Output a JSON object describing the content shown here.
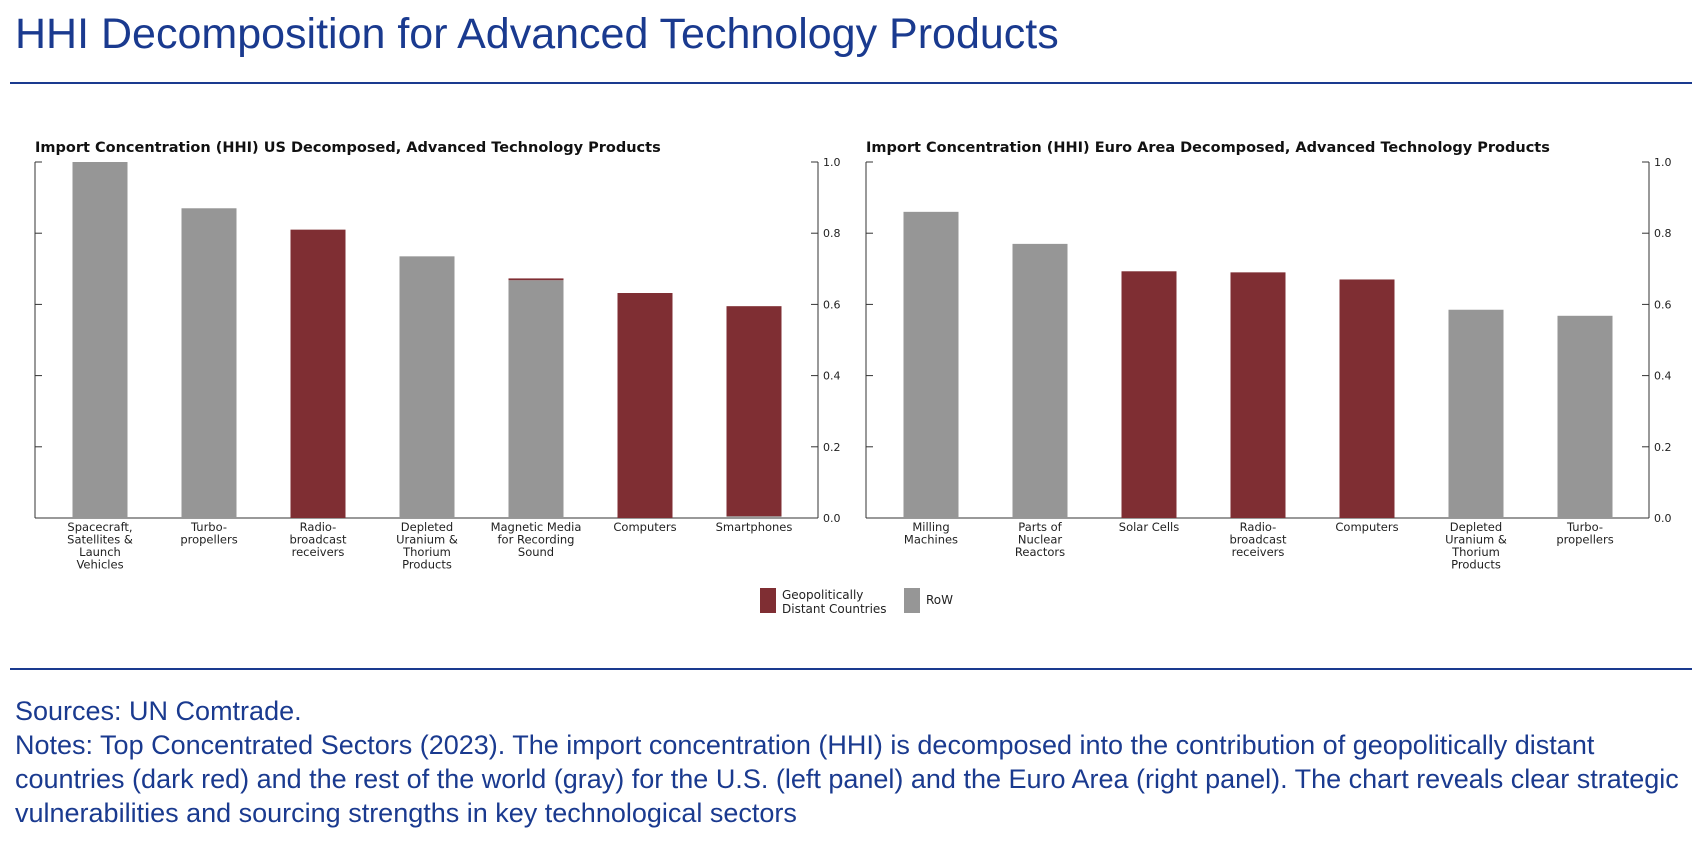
{
  "page": {
    "title": "HHI Decomposition for Advanced Technology Products",
    "sources": "Sources: UN Comtrade.",
    "notes": "Notes: Top Concentrated Sectors (2023). The import concentration (HHI) is decomposed into the contribution of geopolitically distant countries (dark red) and the rest of the world (gray) for the U.S. (left panel) and the Euro Area (right panel). The chart reveals clear strategic vulnerabilities and sourcing strengths in key technological sectors"
  },
  "colors": {
    "geo": "#7f2e33",
    "row": "#969696",
    "axis": "#333333"
  },
  "legend": {
    "items": [
      {
        "label_lines": [
          "Geopolitically",
          "Distant Countries"
        ],
        "series": "geo"
      },
      {
        "label_lines": [
          "RoW"
        ],
        "series": "row"
      }
    ]
  },
  "chart_data": [
    {
      "type": "bar",
      "stacked": true,
      "title": "Import Concentration (HHI) US Decomposed, Advanced Technology Products",
      "ylim": [
        0,
        1.0
      ],
      "yticks": [
        "0.0",
        "0.2",
        "0.4",
        "0.6",
        "0.8",
        "1.0"
      ],
      "ytick_values": [
        0.0,
        0.2,
        0.4,
        0.6,
        0.8,
        1.0
      ],
      "categories": [
        [
          "Spacecraft,",
          "Satellites &",
          "Launch",
          "Vehicles"
        ],
        [
          "Turbo-",
          "propellers"
        ],
        [
          "Radio-",
          "broadcast",
          "receivers"
        ],
        [
          "Depleted",
          "Uranium &",
          "Thorium",
          "Products"
        ],
        [
          "Magnetic Media",
          "for Recording",
          "Sound"
        ],
        [
          "Computers"
        ],
        [
          "Smartphones"
        ]
      ],
      "series": [
        {
          "name": "RoW",
          "key": "row",
          "values": [
            1.0,
            0.87,
            0.0,
            0.735,
            0.668,
            0.0,
            0.005
          ]
        },
        {
          "name": "Geopolitically Distant Countries",
          "key": "geo",
          "values": [
            0.0,
            0.0,
            0.81,
            0.0,
            0.005,
            0.632,
            0.59
          ]
        }
      ]
    },
    {
      "type": "bar",
      "stacked": true,
      "title": "Import Concentration (HHI) Euro Area Decomposed, Advanced Technology Products",
      "ylim": [
        0,
        1.0
      ],
      "yticks": [
        "0.0",
        "0.2",
        "0.4",
        "0.6",
        "0.8",
        "1.0"
      ],
      "ytick_values": [
        0.0,
        0.2,
        0.4,
        0.6,
        0.8,
        1.0
      ],
      "categories": [
        [
          "Milling",
          "Machines"
        ],
        [
          "Parts of",
          "Nuclear",
          "Reactors"
        ],
        [
          "Solar Cells"
        ],
        [
          "Radio-",
          "broadcast",
          "receivers"
        ],
        [
          "Computers"
        ],
        [
          "Depleted",
          "Uranium &",
          "Thorium",
          "Products"
        ],
        [
          "Turbo-",
          "propellers"
        ]
      ],
      "series": [
        {
          "name": "RoW",
          "key": "row",
          "values": [
            0.86,
            0.77,
            0.0,
            0.0,
            0.0,
            0.585,
            0.568
          ]
        },
        {
          "name": "Geopolitically Distant Countries",
          "key": "geo",
          "values": [
            0.0,
            0.0,
            0.693,
            0.69,
            0.67,
            0.0,
            0.0
          ]
        }
      ]
    }
  ]
}
